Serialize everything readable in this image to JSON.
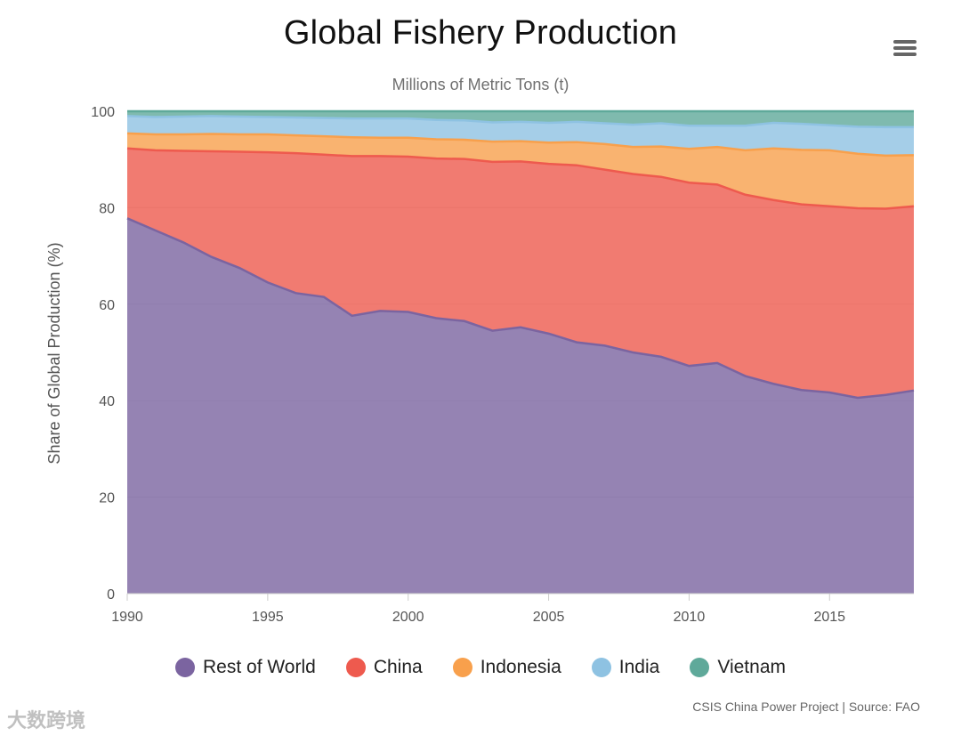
{
  "header": {
    "title": "Global Fishery Production",
    "subtitle": "Millions of Metric Tons (t)"
  },
  "toolbar": {
    "menu_icon": "hamburger-menu-icon"
  },
  "chart_data": {
    "type": "area",
    "stacked": true,
    "title": "Global Fishery Production",
    "subtitle": "Millions of Metric Tons (t)",
    "xlabel": "",
    "ylabel": "Share of Global Production (%)",
    "x": [
      1990,
      1991,
      1992,
      1993,
      1994,
      1995,
      1996,
      1997,
      1998,
      1999,
      2000,
      2001,
      2002,
      2003,
      2004,
      2005,
      2006,
      2007,
      2008,
      2009,
      2010,
      2011,
      2012,
      2013,
      2014,
      2015,
      2016,
      2017,
      2018
    ],
    "xlim": [
      1990,
      2018
    ],
    "ylim": [
      0,
      100
    ],
    "x_ticks": [
      1990,
      1995,
      2000,
      2005,
      2010,
      2015
    ],
    "y_ticks": [
      0,
      20,
      40,
      60,
      80,
      100
    ],
    "grid": true,
    "legend_position": "bottom-center",
    "series": [
      {
        "name": "Rest of World",
        "color": "#7b64a0",
        "values": [
          77.8,
          75.3,
          72.8,
          69.8,
          67.5,
          64.5,
          62.3,
          61.5,
          57.6,
          58.6,
          58.4,
          57.1,
          56.5,
          54.5,
          55.2,
          53.9,
          52.1,
          51.4,
          50.0,
          49.1,
          47.2,
          47.8,
          45.1,
          43.5,
          42.2,
          41.7,
          40.6,
          41.2,
          42.1
        ]
      },
      {
        "name": "China",
        "color": "#ee5a4e",
        "values": [
          14.5,
          16.6,
          19.0,
          21.9,
          24.1,
          27.0,
          29.0,
          29.5,
          33.1,
          32.1,
          32.2,
          33.1,
          33.6,
          35.0,
          34.4,
          35.2,
          36.7,
          36.5,
          37.0,
          37.3,
          38.0,
          37.0,
          37.6,
          38.1,
          38.5,
          38.6,
          39.3,
          38.6,
          38.2
        ]
      },
      {
        "name": "Indonesia",
        "color": "#f8a04c",
        "values": [
          3.1,
          3.3,
          3.4,
          3.6,
          3.6,
          3.7,
          3.7,
          3.8,
          3.9,
          3.8,
          3.9,
          4.0,
          4.0,
          4.2,
          4.2,
          4.4,
          4.8,
          5.3,
          5.6,
          6.3,
          7.0,
          7.8,
          9.2,
          10.7,
          11.3,
          11.6,
          11.3,
          11.0,
          10.6
        ]
      },
      {
        "name": "India",
        "color": "#8ec2e2",
        "values": [
          3.6,
          3.6,
          3.7,
          3.7,
          3.7,
          3.6,
          3.7,
          3.8,
          3.9,
          4.0,
          4.0,
          4.0,
          4.0,
          4.0,
          4.0,
          4.1,
          4.2,
          4.3,
          4.6,
          4.8,
          4.8,
          4.4,
          5.1,
          5.3,
          5.4,
          5.2,
          5.6,
          5.9,
          5.8
        ]
      },
      {
        "name": "Vietnam",
        "color": "#5fa99a",
        "values": [
          1.0,
          1.2,
          1.1,
          1.0,
          1.1,
          1.2,
          1.3,
          1.4,
          1.5,
          1.5,
          1.5,
          1.8,
          1.9,
          2.3,
          2.2,
          2.4,
          2.2,
          2.5,
          2.8,
          2.5,
          3.0,
          3.0,
          3.0,
          2.4,
          2.6,
          2.9,
          3.2,
          3.3,
          3.3
        ]
      }
    ]
  },
  "credits": {
    "text": "CSIS China Power Project | Source: FAO"
  },
  "watermark": {
    "text": "大数跨境"
  }
}
